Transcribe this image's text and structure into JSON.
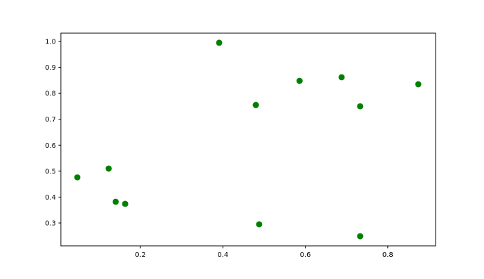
{
  "chart_data": {
    "type": "scatter",
    "title": "",
    "xlabel": "",
    "ylabel": "",
    "xlim": [
      0.007,
      0.916
    ],
    "ylim": [
      0.212,
      1.032
    ],
    "xticks": [
      0.2,
      0.4,
      0.6,
      0.8
    ],
    "xtick_labels": [
      "0.2",
      "0.4",
      "0.6",
      "0.8"
    ],
    "yticks": [
      0.3,
      0.4,
      0.5,
      0.6,
      0.7,
      0.8,
      0.9,
      1.0
    ],
    "ytick_labels": [
      "0.3",
      "0.4",
      "0.5",
      "0.6",
      "0.7",
      "0.8",
      "0.9",
      "1.0"
    ],
    "grid": false,
    "color": "#008000",
    "points": [
      {
        "x": 0.047,
        "y": 0.476
      },
      {
        "x": 0.123,
        "y": 0.51
      },
      {
        "x": 0.14,
        "y": 0.382
      },
      {
        "x": 0.163,
        "y": 0.374
      },
      {
        "x": 0.391,
        "y": 0.995
      },
      {
        "x": 0.48,
        "y": 0.755
      },
      {
        "x": 0.488,
        "y": 0.295
      },
      {
        "x": 0.586,
        "y": 0.848
      },
      {
        "x": 0.688,
        "y": 0.862
      },
      {
        "x": 0.733,
        "y": 0.75
      },
      {
        "x": 0.733,
        "y": 0.249
      },
      {
        "x": 0.874,
        "y": 0.835
      }
    ]
  }
}
